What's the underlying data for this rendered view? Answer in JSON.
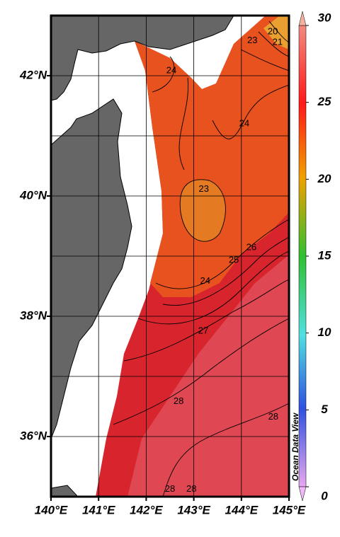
{
  "map": {
    "xlim": [
      140,
      145
    ],
    "ylim": [
      35,
      43
    ],
    "xticks": [
      {
        "value": 140,
        "label": "140°E"
      },
      {
        "value": 141,
        "label": "141°E"
      },
      {
        "value": 142,
        "label": "142°E"
      },
      {
        "value": 143,
        "label": "143°E"
      },
      {
        "value": 144,
        "label": "144°E"
      },
      {
        "value": 145,
        "label": "145°E"
      }
    ],
    "yticks": [
      {
        "value": 36,
        "label": "36°N"
      },
      {
        "value": 38,
        "label": "38°N"
      },
      {
        "value": 40,
        "label": "40°N"
      },
      {
        "value": 42,
        "label": "42°N"
      }
    ],
    "grid_lats": [
      36,
      37,
      38,
      39,
      40,
      41,
      42
    ],
    "colorbar": {
      "lim": [
        0,
        30
      ],
      "ticks": [
        0,
        5,
        10,
        15,
        20,
        25,
        30
      ]
    },
    "contour_labels": [
      {
        "value": 24,
        "lon": 142.53,
        "lat": 42.08
      },
      {
        "value": 24,
        "lon": 144.06,
        "lat": 41.2
      },
      {
        "value": 23,
        "lon": 143.21,
        "lat": 40.11
      },
      {
        "value": 26,
        "lon": 144.21,
        "lat": 39.14
      },
      {
        "value": 25,
        "lon": 143.84,
        "lat": 38.93
      },
      {
        "value": 24,
        "lon": 143.24,
        "lat": 38.58
      },
      {
        "value": 27,
        "lon": 143.2,
        "lat": 37.75
      },
      {
        "value": 28,
        "lon": 142.68,
        "lat": 36.58
      },
      {
        "value": 28,
        "lon": 144.67,
        "lat": 36.32
      },
      {
        "value": 28,
        "lon": 142.5,
        "lat": 35.12
      },
      {
        "value": 28,
        "lon": 142.95,
        "lat": 35.12
      },
      {
        "value": 23,
        "lon": 144.23,
        "lat": 42.58
      },
      {
        "value": 20,
        "lon": 144.66,
        "lat": 42.73
      },
      {
        "value": 21,
        "lon": 144.76,
        "lat": 42.55
      }
    ],
    "watermark": "Ocean Data View"
  }
}
